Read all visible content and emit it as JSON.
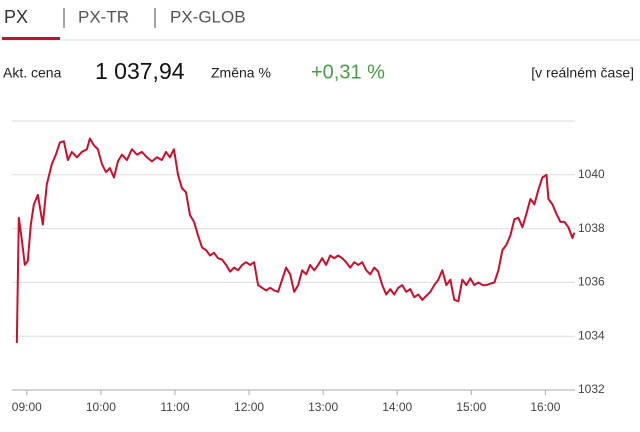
{
  "tabs": [
    "PX",
    "PX-TR",
    "PX-GLOB"
  ],
  "quote": {
    "price_label": "Akt. cena",
    "price": "1 037,94",
    "change_label": "Změna %",
    "change": "+0,31 %",
    "realtime": "[v reálném čase]"
  },
  "chart_data": {
    "type": "line",
    "color": "#c8102e",
    "grid": true,
    "xlim": [
      8.8,
      16.4
    ],
    "ylim": [
      1032,
      1042
    ],
    "xticks": [
      {
        "value": 9,
        "label": "09:00"
      },
      {
        "value": 10,
        "label": "10:00"
      },
      {
        "value": 11,
        "label": "11:00"
      },
      {
        "value": 12,
        "label": "12:00"
      },
      {
        "value": 13,
        "label": "13:00"
      },
      {
        "value": 14,
        "label": "14:00"
      },
      {
        "value": 15,
        "label": "15:00"
      },
      {
        "value": 16,
        "label": "16:00"
      }
    ],
    "yticks": [
      1032,
      1034,
      1036,
      1038,
      1040
    ],
    "x": [
      8.865,
      8.892,
      8.932,
      8.973,
      9.013,
      9.054,
      9.095,
      9.149,
      9.216,
      9.27,
      9.338,
      9.392,
      9.446,
      9.5,
      9.554,
      9.608,
      9.676,
      9.743,
      9.811,
      9.851,
      9.905,
      9.959,
      10.014,
      10.068,
      10.122,
      10.176,
      10.23,
      10.284,
      10.351,
      10.419,
      10.486,
      10.554,
      10.622,
      10.689,
      10.757,
      10.824,
      10.878,
      10.932,
      10.986,
      11.041,
      11.095,
      11.149,
      11.203,
      11.257,
      11.311,
      11.365,
      11.419,
      11.473,
      11.527,
      11.581,
      11.635,
      11.69,
      11.744,
      11.798,
      11.852,
      11.906,
      11.96,
      12.014,
      12.068,
      12.122,
      12.176,
      12.23,
      12.284,
      12.338,
      12.392,
      12.446,
      12.5,
      12.555,
      12.609,
      12.663,
      12.717,
      12.771,
      12.825,
      12.879,
      12.933,
      12.987,
      13.041,
      13.095,
      13.149,
      13.203,
      13.257,
      13.311,
      13.365,
      13.42,
      13.474,
      13.528,
      13.582,
      13.636,
      13.69,
      13.744,
      13.798,
      13.852,
      13.906,
      13.96,
      14.014,
      14.068,
      14.122,
      14.176,
      14.23,
      14.285,
      14.339,
      14.393,
      14.447,
      14.501,
      14.555,
      14.609,
      14.663,
      14.717,
      14.771,
      14.825,
      14.879,
      14.933,
      14.987,
      15.041,
      15.095,
      15.15,
      15.204,
      15.258,
      15.312,
      15.366,
      15.42,
      15.474,
      15.528,
      15.582,
      15.636,
      15.69,
      15.744,
      15.798,
      15.852,
      15.906,
      15.96,
      16.015,
      16.041,
      16.095,
      16.149,
      16.203,
      16.257,
      16.311,
      16.365,
      16.39
    ],
    "values": [
      1033.75,
      1038.4,
      1037.6,
      1036.65,
      1036.8,
      1038.15,
      1038.9,
      1039.25,
      1038.15,
      1039.65,
      1040.4,
      1040.75,
      1041.2,
      1041.25,
      1040.55,
      1040.85,
      1040.65,
      1040.85,
      1040.95,
      1041.35,
      1041.1,
      1040.95,
      1040.4,
      1040.1,
      1040.25,
      1039.9,
      1040.5,
      1040.75,
      1040.55,
      1040.95,
      1040.75,
      1040.85,
      1040.65,
      1040.5,
      1040.65,
      1040.55,
      1040.85,
      1040.65,
      1040.95,
      1040.0,
      1039.5,
      1039.35,
      1038.5,
      1038.25,
      1037.75,
      1037.3,
      1037.2,
      1037.0,
      1037.1,
      1036.9,
      1036.85,
      1036.65,
      1036.4,
      1036.55,
      1036.45,
      1036.65,
      1036.75,
      1036.65,
      1036.75,
      1035.9,
      1035.8,
      1035.7,
      1035.8,
      1035.7,
      1035.65,
      1036.1,
      1036.55,
      1036.3,
      1035.65,
      1035.9,
      1036.45,
      1036.3,
      1036.65,
      1036.45,
      1036.65,
      1036.9,
      1036.65,
      1037.0,
      1036.9,
      1037.0,
      1036.9,
      1036.75,
      1036.55,
      1036.75,
      1036.65,
      1036.75,
      1036.45,
      1036.3,
      1036.55,
      1036.4,
      1035.9,
      1035.55,
      1035.75,
      1035.55,
      1035.8,
      1035.9,
      1035.65,
      1035.75,
      1035.45,
      1035.55,
      1035.35,
      1035.5,
      1035.65,
      1035.9,
      1036.1,
      1036.45,
      1035.9,
      1036.1,
      1035.35,
      1035.3,
      1036.1,
      1035.9,
      1036.15,
      1035.9,
      1036.0,
      1035.9,
      1035.9,
      1035.95,
      1036.0,
      1036.45,
      1037.2,
      1037.4,
      1037.75,
      1038.35,
      1038.4,
      1038.05,
      1038.55,
      1039.1,
      1038.9,
      1039.45,
      1039.9,
      1040.0,
      1039.1,
      1038.9,
      1038.55,
      1038.25,
      1038.25,
      1038.05,
      1037.65,
      1037.85
    ]
  }
}
